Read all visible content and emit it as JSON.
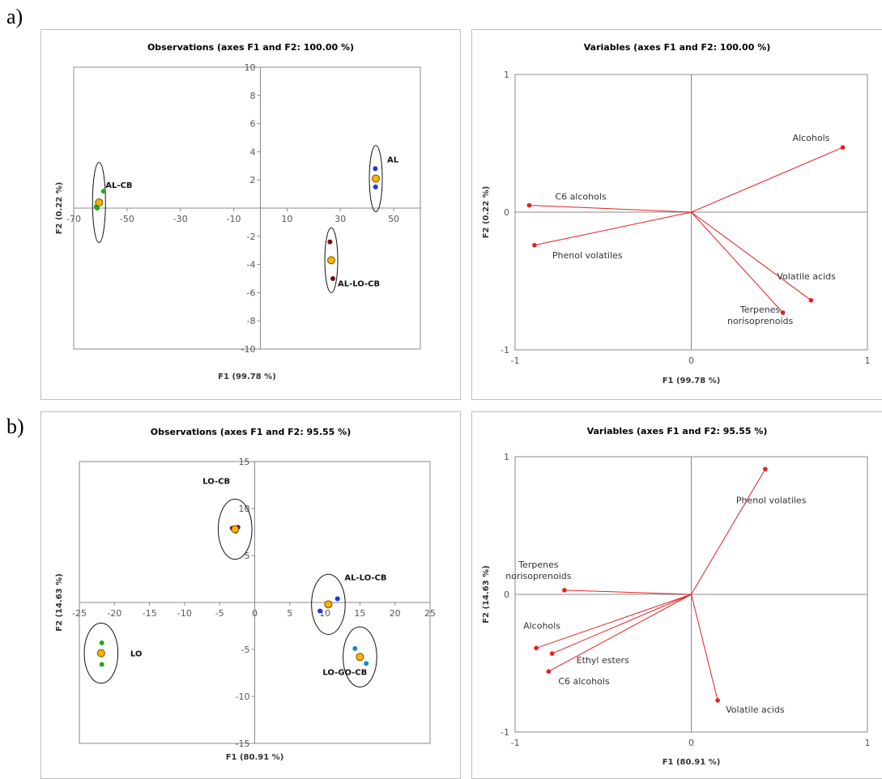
{
  "panel_labels": [
    "a)",
    "b)"
  ],
  "chart_data": [
    {
      "type": "scatter",
      "title": "Observations (axes F1 and F2: 100.00 %)",
      "xlabel": "F1 (99.78 %)",
      "ylabel": "F2 (0.22 %)",
      "xlim": [
        -70,
        60
      ],
      "ylim": [
        -10,
        10
      ],
      "xticks": [
        -70,
        -50,
        -30,
        -10,
        10,
        30,
        50
      ],
      "yticks": [
        -10,
        -8,
        -6,
        -4,
        -2,
        0,
        2,
        4,
        6,
        8,
        10
      ],
      "grid": false,
      "series": [
        {
          "name": "AL-CB",
          "color": "#1fa81f",
          "centroid": [
            -60.5,
            0.4
          ],
          "points": [
            [
              -58.8,
              1.2
            ],
            [
              -61.5,
              0.1
            ],
            [
              -61.2,
              0.0
            ]
          ],
          "ellipse": [
            2.4,
            2.85
          ]
        },
        {
          "name": "AL",
          "color": "#1f33e6",
          "centroid": [
            43.3,
            2.1
          ],
          "points": [
            [
              43.1,
              2.8
            ],
            [
              43.2,
              1.5
            ]
          ],
          "ellipse": [
            1.6,
            2.35
          ]
        },
        {
          "name": "AL-LO-CB",
          "color": "#7a0b0b",
          "centroid": [
            26.6,
            -3.7
          ],
          "points": [
            [
              26.1,
              -2.4
            ],
            [
              27.2,
              -5.0
            ]
          ],
          "ellipse": [
            1.9,
            2.3
          ]
        }
      ]
    },
    {
      "type": "vector",
      "title": "Variables (axes F1 and F2: 100.00 %)",
      "xlabel": "F1 (99.78 %)",
      "ylabel": "F2 (0.22 %)",
      "xlim": [
        -1,
        1
      ],
      "ylim": [
        -1,
        1
      ],
      "xticks": [
        -1,
        0,
        1
      ],
      "yticks": [
        -1,
        0,
        1
      ],
      "vectors": [
        {
          "label": "Alcohols",
          "x": 0.86,
          "y": 0.47
        },
        {
          "label": "C6 alcohols",
          "x": -0.92,
          "y": 0.05
        },
        {
          "label": "Phenol volatiles",
          "x": -0.89,
          "y": -0.24
        },
        {
          "label": "Volatile acids",
          "x": 0.68,
          "y": -0.64
        },
        {
          "label": "Terpenes\nnorisoprenoids",
          "x": 0.52,
          "y": -0.73
        }
      ]
    },
    {
      "type": "scatter",
      "title": "Observations (axes F1 and F2: 95.55 %)",
      "xlabel": "F1 (80.91 %)",
      "ylabel": "F2 (14.63 %)",
      "xlim": [
        -25,
        25
      ],
      "ylim": [
        -15,
        15
      ],
      "xticks": [
        -25,
        -20,
        -15,
        -10,
        -5,
        0,
        5,
        10,
        15,
        20,
        25
      ],
      "yticks": [
        -15,
        -10,
        -5,
        0,
        5,
        10,
        15
      ],
      "grid": false,
      "series": [
        {
          "name": "LO-CB",
          "color": "#7a0b0b",
          "centroid": [
            -2.8,
            7.8
          ],
          "points": [
            [
              -2.4,
              8.0
            ],
            [
              -3.2,
              7.9
            ],
            [
              -2.7,
              7.6
            ]
          ],
          "ellipse": [
            2.4,
            3.2
          ]
        },
        {
          "name": "AL-LO-CB",
          "color": "#1f33e6",
          "centroid": [
            10.5,
            -0.2
          ],
          "points": [
            [
              11.8,
              0.4
            ],
            [
              9.3,
              -0.9
            ]
          ],
          "ellipse": [
            2.4,
            3.2
          ]
        },
        {
          "name": "LO",
          "color": "#1fa81f",
          "centroid": [
            -21.9,
            -5.4
          ],
          "points": [
            [
              -21.8,
              -4.3
            ],
            [
              -21.8,
              -6.6
            ]
          ],
          "ellipse": [
            2.4,
            3.2
          ]
        },
        {
          "name": "LO-GO-CB",
          "color": "#1a8db8",
          "centroid": [
            15.0,
            -5.8
          ],
          "points": [
            [
              14.3,
              -4.9
            ],
            [
              15.9,
              -6.5
            ]
          ],
          "ellipse": [
            2.4,
            3.2
          ]
        }
      ]
    },
    {
      "type": "vector",
      "title": "Variables (axes F1 and F2: 95.55 %)",
      "xlabel": "F1 (80.91 %)",
      "ylabel": "F2 (14.63 %)",
      "xlim": [
        -1,
        1
      ],
      "ylim": [
        -1,
        1
      ],
      "xticks": [
        -1,
        0,
        1
      ],
      "yticks": [
        -1,
        0,
        1
      ],
      "vectors": [
        {
          "label": "Phenol volatiles",
          "x": 0.42,
          "y": 0.91
        },
        {
          "label": "Terpenes\nnorisoprenoids",
          "x": -0.72,
          "y": 0.03
        },
        {
          "label": "Alcohols",
          "x": -0.88,
          "y": -0.39
        },
        {
          "label": "Ethyl esters",
          "x": -0.79,
          "y": -0.43
        },
        {
          "label": "C6 alcohols",
          "x": -0.81,
          "y": -0.56
        },
        {
          "label": "Volatile acids",
          "x": 0.15,
          "y": -0.77
        }
      ]
    }
  ]
}
